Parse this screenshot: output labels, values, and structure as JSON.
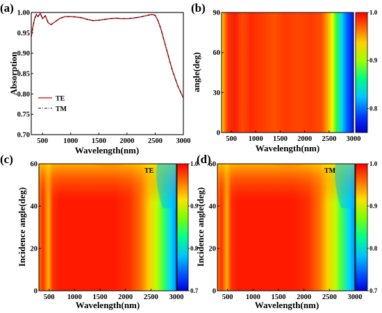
{
  "chart_data": [
    {
      "panel": "(a)",
      "type": "line",
      "xlabel": "Wavelength(nm)",
      "ylabel": "Absorption",
      "xlim": [
        300,
        3000
      ],
      "ylim": [
        0.7,
        1.0
      ],
      "xticks": [
        500,
        1000,
        1500,
        2000,
        2500,
        3000
      ],
      "yticks": [
        0.7,
        0.75,
        0.8,
        0.85,
        0.9,
        0.95,
        1.0
      ],
      "legend": "bottom-left",
      "series": [
        {
          "name": "TE",
          "color": "#e8262a",
          "style": "solid",
          "x": [
            300,
            330,
            360,
            390,
            420,
            460,
            500,
            550,
            600,
            650,
            700,
            800,
            900,
            1000,
            1100,
            1200,
            1300,
            1400,
            1500,
            1600,
            1700,
            1800,
            1900,
            2000,
            2100,
            2200,
            2300,
            2400,
            2450,
            2500,
            2550,
            2600,
            2650,
            2700,
            2750,
            2800,
            2850,
            2900,
            2950,
            3000
          ],
          "values": [
            0.94,
            0.965,
            0.985,
            0.995,
            0.99,
            0.998,
            0.985,
            0.992,
            0.975,
            0.97,
            0.975,
            0.985,
            0.99,
            0.99,
            0.989,
            0.987,
            0.983,
            0.98,
            0.981,
            0.983,
            0.985,
            0.986,
            0.985,
            0.985,
            0.986,
            0.988,
            0.991,
            0.994,
            0.995,
            0.993,
            0.98,
            0.96,
            0.935,
            0.91,
            0.885,
            0.86,
            0.84,
            0.82,
            0.805,
            0.79
          ]
        },
        {
          "name": "TM",
          "color": "#000000",
          "style": "dash-dot",
          "x": [
            300,
            330,
            360,
            390,
            420,
            460,
            500,
            550,
            600,
            650,
            700,
            800,
            900,
            1000,
            1100,
            1200,
            1300,
            1400,
            1500,
            1600,
            1700,
            1800,
            1900,
            2000,
            2100,
            2200,
            2300,
            2400,
            2450,
            2500,
            2550,
            2600,
            2650,
            2700,
            2750,
            2800,
            2850,
            2900,
            2950,
            3000
          ],
          "values": [
            0.94,
            0.965,
            0.985,
            0.995,
            0.99,
            0.998,
            0.985,
            0.992,
            0.975,
            0.97,
            0.975,
            0.985,
            0.99,
            0.99,
            0.989,
            0.987,
            0.983,
            0.98,
            0.981,
            0.983,
            0.985,
            0.986,
            0.985,
            0.985,
            0.986,
            0.988,
            0.991,
            0.994,
            0.995,
            0.993,
            0.98,
            0.96,
            0.935,
            0.91,
            0.885,
            0.86,
            0.84,
            0.82,
            0.805,
            0.79
          ]
        }
      ]
    },
    {
      "panel": "(b)",
      "type": "heatmap",
      "xlabel": "Wavelength(nm)",
      "ylabel": "angle(deg)",
      "xlim": [
        300,
        3000
      ],
      "ylim": [
        0,
        90
      ],
      "xticks": [
        500,
        1000,
        1500,
        2000,
        2500,
        3000
      ],
      "yticks": [
        0,
        30,
        60,
        90
      ],
      "colorbar": {
        "range": [
          0.75,
          1.0
        ],
        "ticks": [
          "0.8",
          "0.9",
          "1.0"
        ]
      }
    },
    {
      "panel": "(c)",
      "type": "heatmap",
      "annotation": "TE",
      "xlabel": "Wavelength(nm)",
      "ylabel": "Incidence angle(deg)",
      "xlim": [
        300,
        3000
      ],
      "ylim": [
        0,
        60
      ],
      "xticks": [
        500,
        1000,
        1500,
        2000,
        2500,
        3000
      ],
      "yticks": [
        0,
        20,
        40,
        60
      ],
      "colorbar": {
        "range": [
          0.7,
          1.0
        ],
        "ticks": [
          "0.7",
          "0.8",
          "0.9",
          "1.0"
        ]
      }
    },
    {
      "panel": "(d)",
      "type": "heatmap",
      "annotation": "TM",
      "xlabel": "Wavelength(nm)",
      "ylabel": "Incidence angle(deg)",
      "xlim": [
        300,
        3000
      ],
      "ylim": [
        0,
        60
      ],
      "xticks": [
        500,
        1000,
        1500,
        2000,
        2500,
        3000
      ],
      "yticks": [
        0,
        20,
        40,
        60
      ],
      "colorbar": {
        "range": [
          0.7,
          1.0
        ],
        "ticks": [
          "0.7",
          "0.8",
          "0.9",
          "1.0"
        ]
      }
    }
  ]
}
